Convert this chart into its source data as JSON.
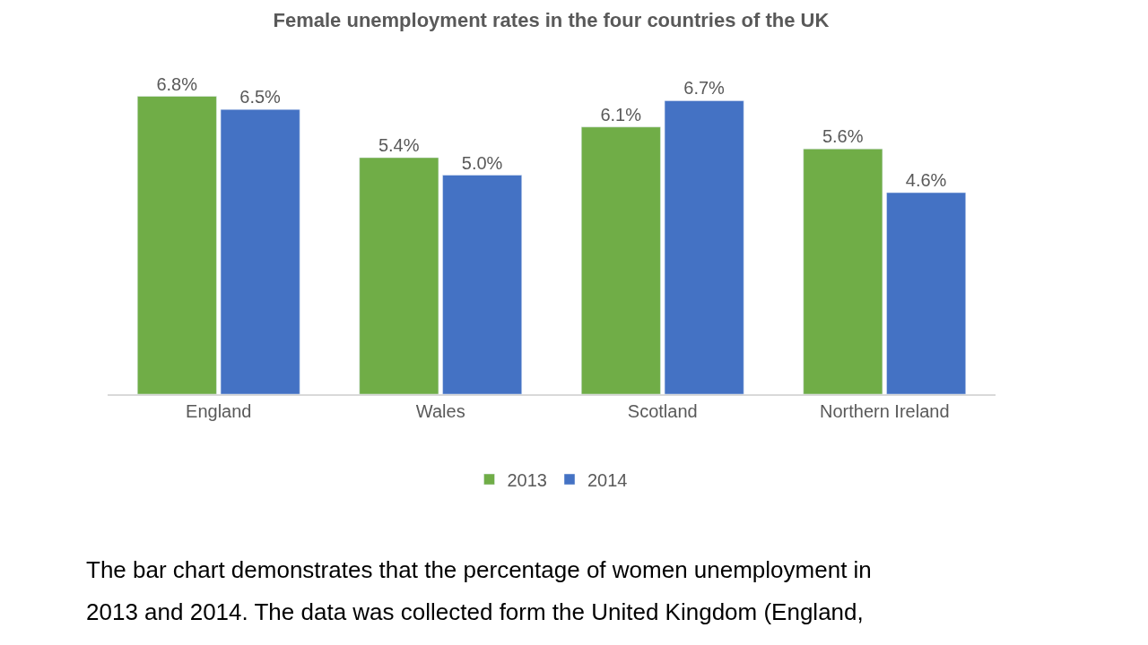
{
  "chart_data": {
    "type": "bar",
    "title": "Female unemployment rates in the four countries of the UK",
    "categories": [
      "England",
      "Wales",
      "Scotland",
      "Northern Ireland"
    ],
    "series": [
      {
        "name": "2013",
        "color": "#70ad47",
        "values": [
          6.8,
          5.4,
          6.1,
          5.6
        ],
        "value_labels": [
          "6.8%",
          "5.4%",
          "6.1%",
          "5.6%"
        ]
      },
      {
        "name": "2014",
        "color": "#4472c4",
        "values": [
          6.5,
          5.0,
          6.7,
          4.6
        ],
        "value_labels": [
          "6.5%",
          "5.0%",
          "6.7%",
          "4.6%"
        ]
      }
    ],
    "legend": "bottom",
    "annotations": [
      "The bar chart demonstrates that the percentage of women unemployment in",
      "2013 and 2014. The data was collected form the United Kingdom (England,"
    ]
  }
}
